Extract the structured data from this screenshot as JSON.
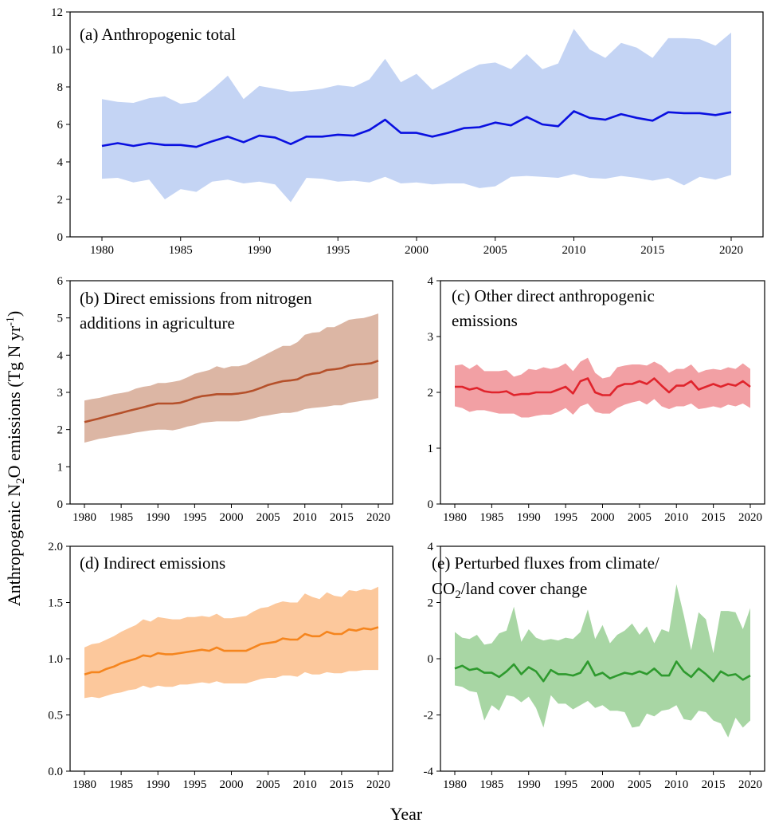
{
  "figure": {
    "ylabel_main": "Anthropogenic N",
    "ylabel_sub": "2",
    "ylabel_tail": "O emissions (Tg N yr",
    "ylabel_sup": "-1",
    "ylabel_close": ")",
    "xlabel": "Year"
  },
  "chart_data": [
    {
      "id": "a",
      "type": "line",
      "title_lines": [
        "(a) Anthropogenic total"
      ],
      "xlabel": "Year",
      "ylim": [
        0,
        12
      ],
      "yticks": [
        0,
        2,
        4,
        6,
        8,
        10,
        12
      ],
      "ytick_labels": [
        "0",
        "2",
        "4",
        "6",
        "8",
        "10",
        "12"
      ],
      "xticks": [
        1980,
        1985,
        1990,
        1995,
        2000,
        2005,
        2010,
        2015,
        2020
      ],
      "line_color": "#0a10e0",
      "band_color": "#c4d4f4",
      "x": [
        1980,
        1981,
        1982,
        1983,
        1984,
        1985,
        1986,
        1987,
        1988,
        1989,
        1990,
        1991,
        1992,
        1993,
        1994,
        1995,
        1996,
        1997,
        1998,
        1999,
        2000,
        2001,
        2002,
        2003,
        2004,
        2005,
        2006,
        2007,
        2008,
        2009,
        2010,
        2011,
        2012,
        2013,
        2014,
        2015,
        2016,
        2017,
        2018,
        2019,
        2020
      ],
      "mean": [
        4.85,
        5.0,
        4.85,
        5.0,
        4.9,
        4.9,
        4.8,
        5.1,
        5.35,
        5.05,
        5.4,
        5.3,
        4.95,
        5.35,
        5.35,
        5.45,
        5.4,
        5.7,
        6.25,
        5.55,
        5.55,
        5.35,
        5.55,
        5.8,
        5.85,
        6.1,
        5.95,
        6.4,
        6.0,
        5.9,
        6.7,
        6.35,
        6.25,
        6.55,
        6.35,
        6.2,
        6.65,
        6.6,
        6.6,
        6.5,
        6.65
      ],
      "upper": [
        7.35,
        7.2,
        7.15,
        7.4,
        7.5,
        7.1,
        7.2,
        7.85,
        8.6,
        7.35,
        8.05,
        7.9,
        7.75,
        7.8,
        7.9,
        8.1,
        8.0,
        8.4,
        9.5,
        8.25,
        8.7,
        7.85,
        8.3,
        8.8,
        9.2,
        9.3,
        8.95,
        9.75,
        8.95,
        9.25,
        11.1,
        10.0,
        9.55,
        10.35,
        10.1,
        9.55,
        10.6,
        10.6,
        10.55,
        10.2,
        10.9
      ],
      "lower": [
        3.1,
        3.15,
        2.9,
        3.05,
        2.0,
        2.55,
        2.4,
        2.95,
        3.05,
        2.85,
        2.95,
        2.8,
        1.85,
        3.15,
        3.1,
        2.95,
        3.0,
        2.9,
        3.2,
        2.85,
        2.9,
        2.8,
        2.85,
        2.85,
        2.6,
        2.7,
        3.2,
        3.25,
        3.2,
        3.15,
        3.35,
        3.15,
        3.1,
        3.25,
        3.15,
        3.0,
        3.15,
        2.75,
        3.2,
        3.05,
        3.3
      ]
    },
    {
      "id": "b",
      "type": "line",
      "title_lines": [
        "(b) Direct emissions from nitrogen",
        "additions in agriculture"
      ],
      "ylim": [
        0,
        6
      ],
      "yticks": [
        0,
        1,
        2,
        3,
        4,
        5,
        6
      ],
      "ytick_labels": [
        "0",
        "1",
        "2",
        "3",
        "4",
        "5",
        "6"
      ],
      "xticks": [
        1980,
        1985,
        1990,
        1995,
        2000,
        2005,
        2010,
        2015,
        2020
      ],
      "line_color": "#b5502a",
      "band_color": "#dcb6a4",
      "x": [
        1980,
        1981,
        1982,
        1983,
        1984,
        1985,
        1986,
        1987,
        1988,
        1989,
        1990,
        1991,
        1992,
        1993,
        1994,
        1995,
        1996,
        1997,
        1998,
        1999,
        2000,
        2001,
        2002,
        2003,
        2004,
        2005,
        2006,
        2007,
        2008,
        2009,
        2010,
        2011,
        2012,
        2013,
        2014,
        2015,
        2016,
        2017,
        2018,
        2019,
        2020
      ],
      "mean": [
        2.2,
        2.25,
        2.3,
        2.35,
        2.4,
        2.45,
        2.5,
        2.55,
        2.6,
        2.65,
        2.7,
        2.7,
        2.7,
        2.72,
        2.78,
        2.85,
        2.9,
        2.92,
        2.95,
        2.95,
        2.95,
        2.97,
        3.0,
        3.05,
        3.12,
        3.2,
        3.25,
        3.3,
        3.32,
        3.35,
        3.45,
        3.5,
        3.52,
        3.6,
        3.62,
        3.65,
        3.72,
        3.75,
        3.76,
        3.78,
        3.85
      ],
      "upper": [
        2.78,
        2.82,
        2.85,
        2.9,
        2.95,
        2.98,
        3.02,
        3.1,
        3.15,
        3.18,
        3.25,
        3.25,
        3.28,
        3.32,
        3.4,
        3.5,
        3.55,
        3.6,
        3.7,
        3.65,
        3.7,
        3.7,
        3.75,
        3.85,
        3.95,
        4.05,
        4.15,
        4.25,
        4.25,
        4.35,
        4.55,
        4.6,
        4.62,
        4.75,
        4.75,
        4.85,
        4.95,
        4.98,
        5.0,
        5.05,
        5.12
      ],
      "lower": [
        1.65,
        1.7,
        1.75,
        1.78,
        1.82,
        1.85,
        1.88,
        1.92,
        1.95,
        1.98,
        2.0,
        2.0,
        1.98,
        2.02,
        2.08,
        2.12,
        2.18,
        2.2,
        2.22,
        2.22,
        2.22,
        2.22,
        2.25,
        2.3,
        2.35,
        2.38,
        2.42,
        2.45,
        2.45,
        2.48,
        2.55,
        2.58,
        2.6,
        2.62,
        2.65,
        2.65,
        2.72,
        2.75,
        2.78,
        2.8,
        2.85
      ]
    },
    {
      "id": "c",
      "type": "line",
      "title_lines": [
        "(c) Other direct anthropogenic",
        " emissions"
      ],
      "ylim": [
        0,
        4
      ],
      "yticks": [
        0,
        1,
        2,
        3,
        4
      ],
      "ytick_labels": [
        "0",
        "1",
        "2",
        "3",
        "4"
      ],
      "xticks": [
        1980,
        1985,
        1990,
        1995,
        2000,
        2005,
        2010,
        2015,
        2020
      ],
      "line_color": "#e0242c",
      "band_color": "#f2a0a4",
      "x": [
        1980,
        1981,
        1982,
        1983,
        1984,
        1985,
        1986,
        1987,
        1988,
        1989,
        1990,
        1991,
        1992,
        1993,
        1994,
        1995,
        1996,
        1997,
        1998,
        1999,
        2000,
        2001,
        2002,
        2003,
        2004,
        2005,
        2006,
        2007,
        2008,
        2009,
        2010,
        2011,
        2012,
        2013,
        2014,
        2015,
        2016,
        2017,
        2018,
        2019,
        2020
      ],
      "mean": [
        2.1,
        2.1,
        2.05,
        2.08,
        2.02,
        2.0,
        2.0,
        2.02,
        1.95,
        1.97,
        1.97,
        2.0,
        2.0,
        2.0,
        2.05,
        2.1,
        1.98,
        2.2,
        2.25,
        2.0,
        1.95,
        1.95,
        2.1,
        2.15,
        2.15,
        2.2,
        2.15,
        2.25,
        2.12,
        2.0,
        2.12,
        2.12,
        2.2,
        2.05,
        2.1,
        2.15,
        2.1,
        2.15,
        2.12,
        2.2,
        2.1
      ],
      "upper": [
        2.48,
        2.5,
        2.42,
        2.5,
        2.38,
        2.38,
        2.38,
        2.4,
        2.28,
        2.32,
        2.42,
        2.4,
        2.45,
        2.42,
        2.45,
        2.52,
        2.38,
        2.55,
        2.62,
        2.35,
        2.25,
        2.28,
        2.45,
        2.48,
        2.5,
        2.5,
        2.48,
        2.55,
        2.48,
        2.35,
        2.42,
        2.42,
        2.5,
        2.35,
        2.4,
        2.42,
        2.4,
        2.45,
        2.42,
        2.52,
        2.42
      ],
      "lower": [
        1.75,
        1.72,
        1.65,
        1.68,
        1.68,
        1.65,
        1.62,
        1.62,
        1.62,
        1.55,
        1.55,
        1.58,
        1.6,
        1.6,
        1.65,
        1.72,
        1.6,
        1.75,
        1.8,
        1.65,
        1.62,
        1.62,
        1.72,
        1.78,
        1.82,
        1.85,
        1.78,
        1.88,
        1.75,
        1.7,
        1.75,
        1.75,
        1.8,
        1.7,
        1.72,
        1.75,
        1.72,
        1.78,
        1.75,
        1.8,
        1.72
      ]
    },
    {
      "id": "d",
      "type": "line",
      "title_lines": [
        "(d) Indirect emissions"
      ],
      "ylim": [
        0,
        2
      ],
      "yticks": [
        0,
        0.5,
        1,
        1.5,
        2
      ],
      "ytick_labels": [
        "0.0",
        "0.5",
        "1.0",
        "1.5",
        "2.0"
      ],
      "xticks": [
        1980,
        1985,
        1990,
        1995,
        2000,
        2005,
        2010,
        2015,
        2020
      ],
      "line_color": "#f5851e",
      "band_color": "#fcc89c",
      "x": [
        1980,
        1981,
        1982,
        1983,
        1984,
        1985,
        1986,
        1987,
        1988,
        1989,
        1990,
        1991,
        1992,
        1993,
        1994,
        1995,
        1996,
        1997,
        1998,
        1999,
        2000,
        2001,
        2002,
        2003,
        2004,
        2005,
        2006,
        2007,
        2008,
        2009,
        2010,
        2011,
        2012,
        2013,
        2014,
        2015,
        2016,
        2017,
        2018,
        2019,
        2020
      ],
      "mean": [
        0.86,
        0.88,
        0.88,
        0.91,
        0.93,
        0.96,
        0.98,
        1.0,
        1.03,
        1.02,
        1.05,
        1.04,
        1.04,
        1.05,
        1.06,
        1.07,
        1.08,
        1.07,
        1.1,
        1.07,
        1.07,
        1.07,
        1.07,
        1.1,
        1.13,
        1.14,
        1.15,
        1.18,
        1.17,
        1.17,
        1.22,
        1.2,
        1.2,
        1.24,
        1.22,
        1.22,
        1.26,
        1.25,
        1.27,
        1.26,
        1.28
      ],
      "upper": [
        1.1,
        1.13,
        1.14,
        1.17,
        1.2,
        1.24,
        1.27,
        1.3,
        1.35,
        1.33,
        1.37,
        1.36,
        1.35,
        1.35,
        1.37,
        1.37,
        1.38,
        1.37,
        1.4,
        1.36,
        1.36,
        1.37,
        1.38,
        1.42,
        1.45,
        1.46,
        1.49,
        1.51,
        1.5,
        1.5,
        1.58,
        1.55,
        1.53,
        1.59,
        1.56,
        1.55,
        1.61,
        1.6,
        1.62,
        1.61,
        1.64
      ],
      "lower": [
        0.65,
        0.66,
        0.65,
        0.67,
        0.69,
        0.7,
        0.72,
        0.73,
        0.76,
        0.74,
        0.76,
        0.75,
        0.75,
        0.77,
        0.77,
        0.78,
        0.79,
        0.78,
        0.8,
        0.78,
        0.78,
        0.78,
        0.78,
        0.8,
        0.82,
        0.83,
        0.83,
        0.85,
        0.85,
        0.84,
        0.88,
        0.86,
        0.86,
        0.88,
        0.87,
        0.87,
        0.89,
        0.89,
        0.9,
        0.9,
        0.9
      ]
    },
    {
      "id": "e",
      "type": "line",
      "title_line1": "(e) Perturbed fluxes from climate/",
      "title_line2_pre": "CO",
      "title_line2_sub": "2",
      "title_line2_post": "/land cover change",
      "ylim": [
        -4,
        4
      ],
      "yticks": [
        -4,
        -2,
        0,
        2,
        4
      ],
      "ytick_labels": [
        "-4",
        "-2",
        "0",
        "2",
        "4"
      ],
      "xticks": [
        1980,
        1985,
        1990,
        1995,
        2000,
        2005,
        2010,
        2015,
        2020
      ],
      "line_color": "#2e9a2e",
      "band_color": "#a8d6a4",
      "x": [
        1980,
        1981,
        1982,
        1983,
        1984,
        1985,
        1986,
        1987,
        1988,
        1989,
        1990,
        1991,
        1992,
        1993,
        1994,
        1995,
        1996,
        1997,
        1998,
        1999,
        2000,
        2001,
        2002,
        2003,
        2004,
        2005,
        2006,
        2007,
        2008,
        2009,
        2010,
        2011,
        2012,
        2013,
        2014,
        2015,
        2016,
        2017,
        2018,
        2019,
        2020
      ],
      "mean": [
        -0.35,
        -0.25,
        -0.4,
        -0.35,
        -0.5,
        -0.5,
        -0.65,
        -0.45,
        -0.2,
        -0.55,
        -0.3,
        -0.45,
        -0.8,
        -0.4,
        -0.55,
        -0.55,
        -0.6,
        -0.5,
        -0.1,
        -0.6,
        -0.5,
        -0.7,
        -0.6,
        -0.5,
        -0.55,
        -0.45,
        -0.55,
        -0.35,
        -0.6,
        -0.6,
        -0.1,
        -0.45,
        -0.65,
        -0.35,
        -0.55,
        -0.8,
        -0.45,
        -0.6,
        -0.55,
        -0.75,
        -0.6
      ],
      "upper": [
        0.95,
        0.75,
        0.7,
        0.85,
        0.5,
        0.55,
        0.9,
        1.0,
        1.85,
        0.6,
        1.05,
        0.75,
        0.65,
        0.7,
        0.65,
        0.75,
        0.7,
        0.95,
        1.75,
        0.7,
        1.2,
        0.55,
        0.85,
        1.0,
        1.25,
        0.85,
        1.15,
        0.55,
        1.05,
        0.95,
        2.65,
        1.55,
        0.3,
        1.65,
        1.4,
        0.2,
        1.7,
        1.7,
        1.65,
        1.05,
        1.8
      ],
      "lower": [
        -0.95,
        -1.0,
        -1.15,
        -1.2,
        -2.2,
        -1.65,
        -1.85,
        -1.3,
        -1.35,
        -1.55,
        -1.35,
        -1.75,
        -2.45,
        -1.3,
        -1.6,
        -1.6,
        -1.8,
        -1.65,
        -1.5,
        -1.75,
        -1.65,
        -1.85,
        -1.85,
        -1.9,
        -2.45,
        -2.4,
        -1.95,
        -2.05,
        -1.85,
        -1.8,
        -1.65,
        -2.15,
        -2.2,
        -1.85,
        -1.9,
        -2.2,
        -2.3,
        -2.8,
        -2.1,
        -2.45,
        -2.2
      ]
    }
  ]
}
